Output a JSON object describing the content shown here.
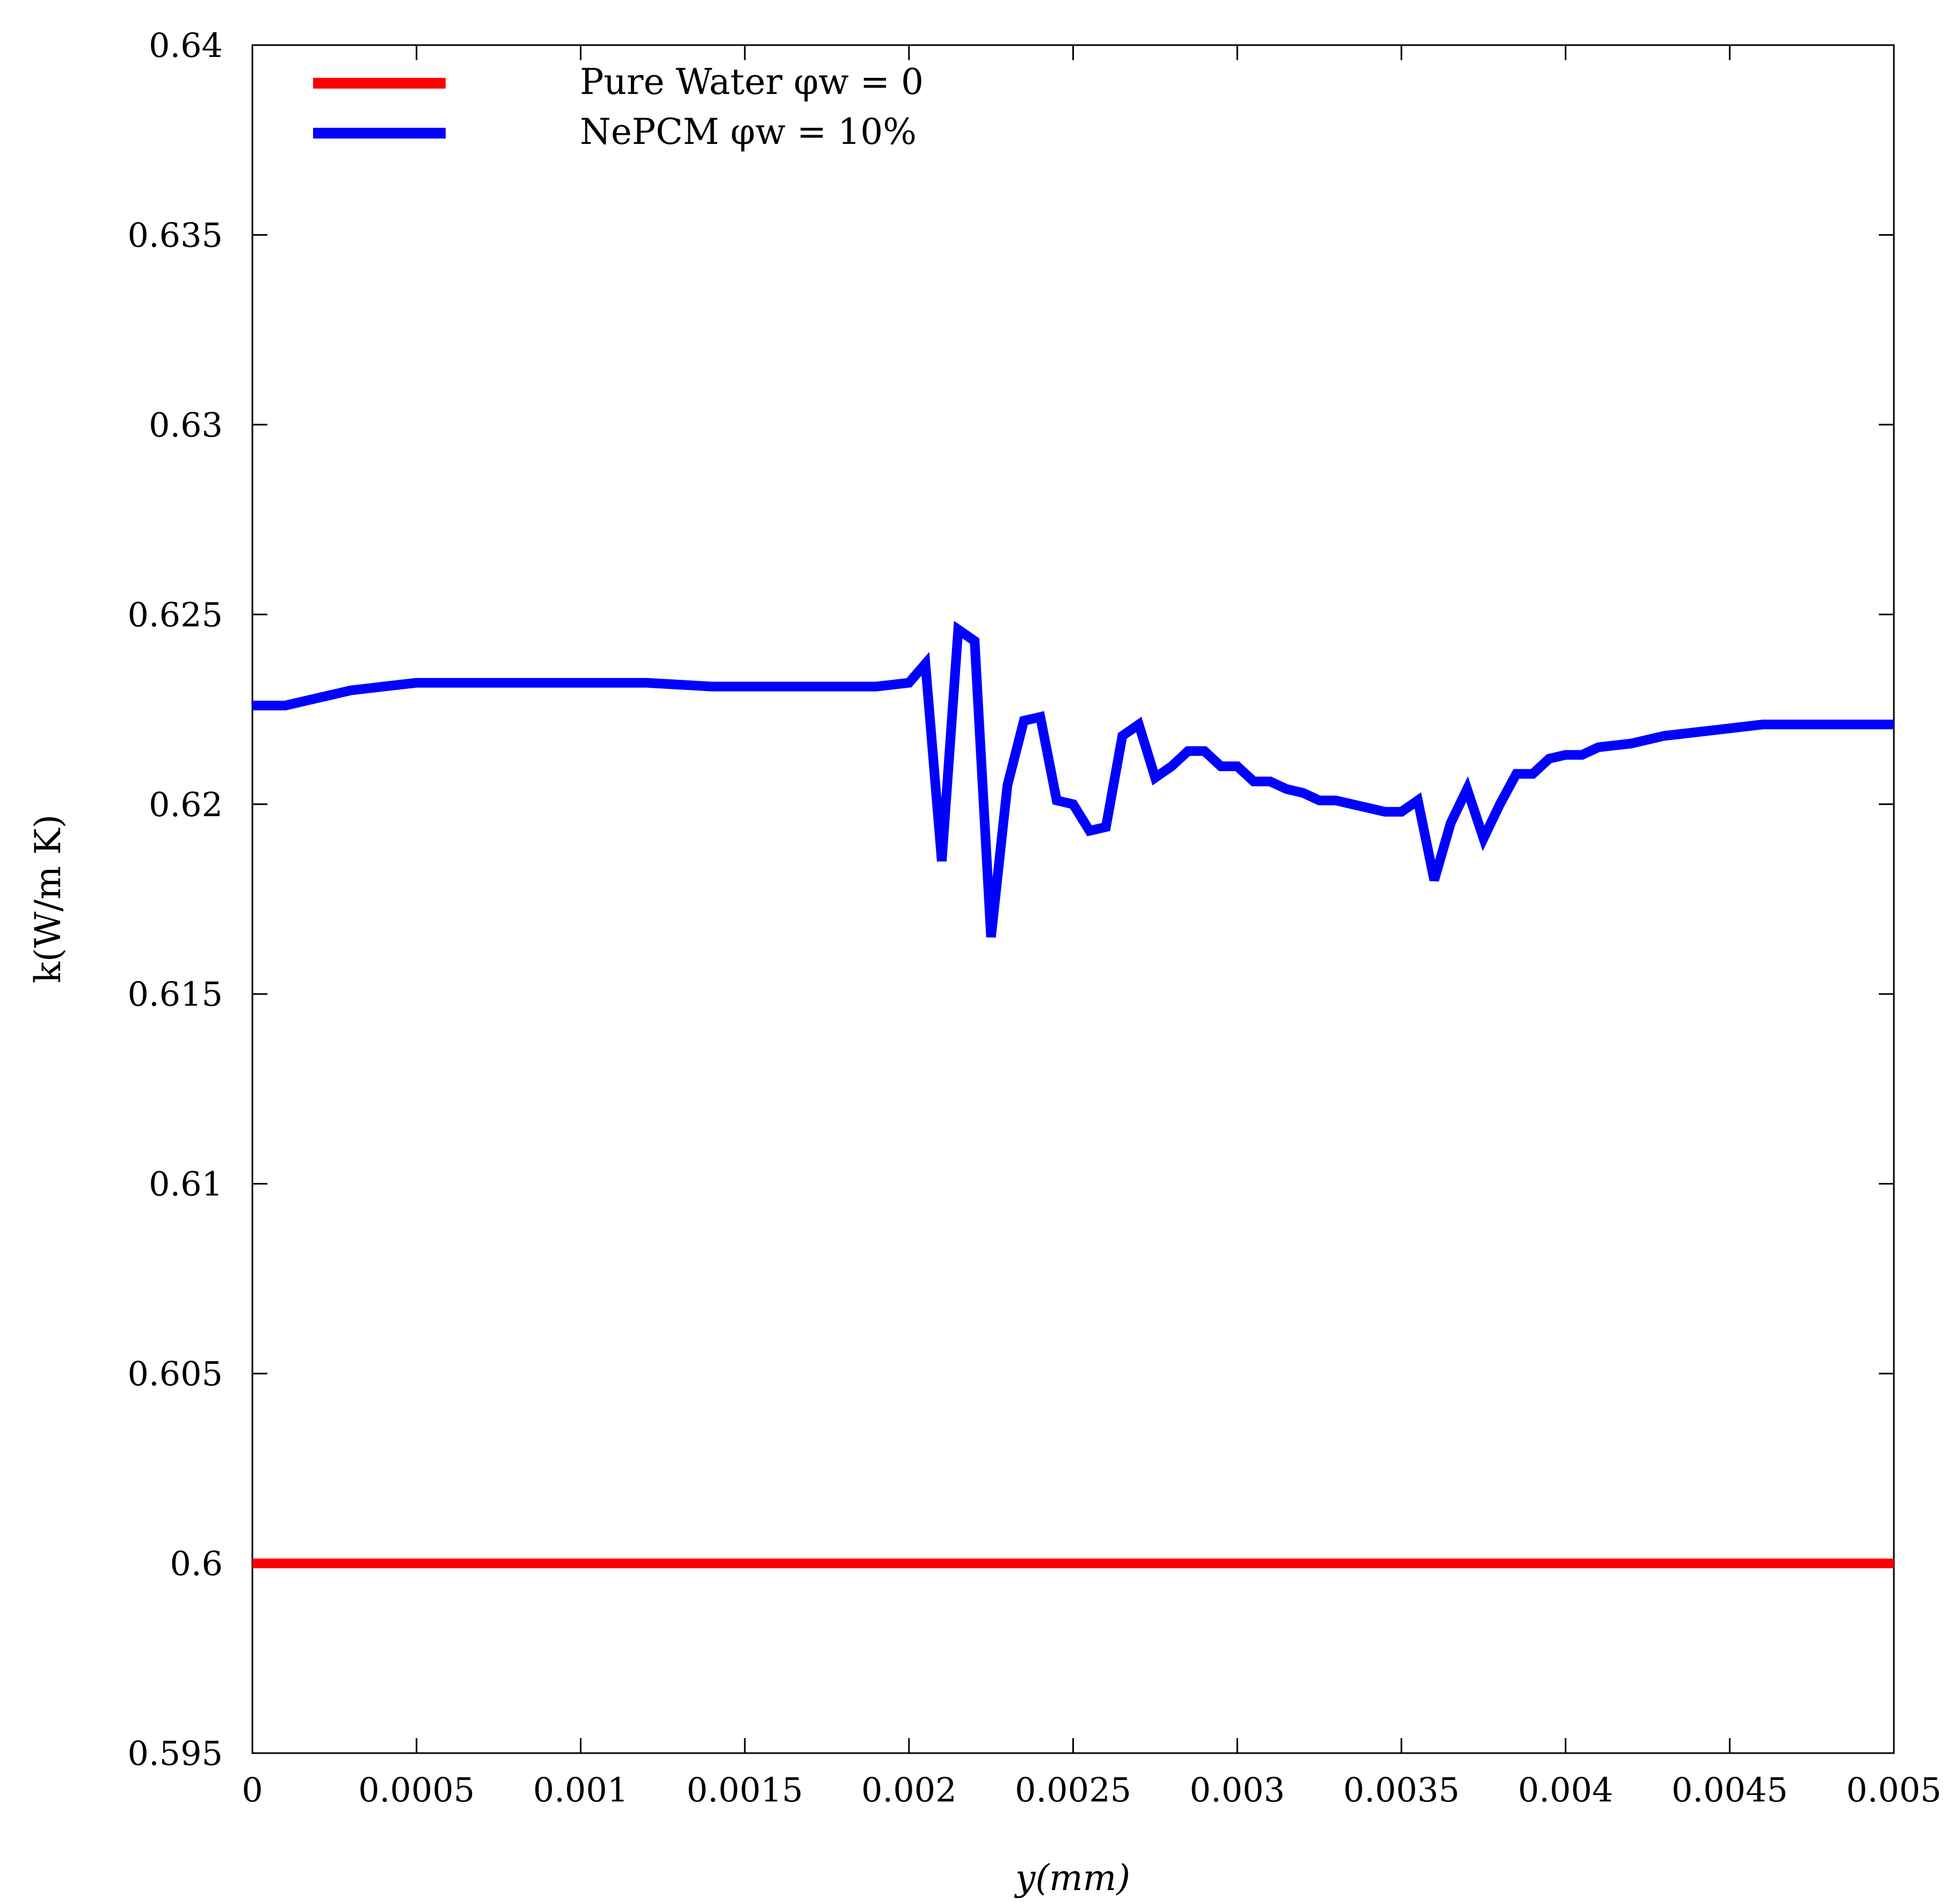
{
  "chart_data": {
    "type": "line",
    "title": "",
    "xlabel": "y(mm)",
    "ylabel": "k(W/m K)",
    "xlim": [
      0,
      0.005
    ],
    "ylim": [
      0.595,
      0.64
    ],
    "x_ticks": [
      "0",
      "0.0005",
      "0.001",
      "0.0015",
      "0.002",
      "0.0025",
      "0.003",
      "0.0035",
      "0.004",
      "0.0045",
      "0.005"
    ],
    "y_ticks": [
      "0.595",
      "0.6",
      "0.605",
      "0.61",
      "0.615",
      "0.62",
      "0.625",
      "0.63",
      "0.635",
      "0.64"
    ],
    "grid": false,
    "legend_position": "top-left",
    "series": [
      {
        "name": "Pure Water φw = 0",
        "color": "#ff0000",
        "x": [
          0,
          0.005
        ],
        "y": [
          0.6,
          0.6
        ]
      },
      {
        "name": "NePCM φw = 10%",
        "color": "#0000ff",
        "x": [
          0,
          0.0001,
          0.0002,
          0.0003,
          0.0004,
          0.0005,
          0.0006,
          0.0008,
          0.001,
          0.0012,
          0.0014,
          0.0016,
          0.0018,
          0.0019,
          0.002,
          0.00205,
          0.0021,
          0.00215,
          0.0022,
          0.00225,
          0.0023,
          0.00235,
          0.0024,
          0.00245,
          0.0025,
          0.00255,
          0.0026,
          0.00265,
          0.0027,
          0.00275,
          0.0028,
          0.00285,
          0.0029,
          0.00295,
          0.003,
          0.00305,
          0.0031,
          0.00315,
          0.0032,
          0.00325,
          0.0033,
          0.00335,
          0.0034,
          0.00345,
          0.0035,
          0.00355,
          0.0036,
          0.00365,
          0.0037,
          0.00375,
          0.0038,
          0.00385,
          0.0039,
          0.00395,
          0.004,
          0.00405,
          0.0041,
          0.0042,
          0.0043,
          0.0044,
          0.0045,
          0.0046,
          0.0047,
          0.0048,
          0.0049,
          0.005
        ],
        "y": [
          0.6226,
          0.6226,
          0.6228,
          0.623,
          0.6231,
          0.6232,
          0.6232,
          0.6232,
          0.6232,
          0.6232,
          0.6231,
          0.6231,
          0.6231,
          0.6231,
          0.6232,
          0.6237,
          0.6185,
          0.6246,
          0.6243,
          0.6165,
          0.6205,
          0.6222,
          0.6223,
          0.6201,
          0.62,
          0.6193,
          0.6194,
          0.6218,
          0.6221,
          0.6207,
          0.621,
          0.6214,
          0.6214,
          0.621,
          0.621,
          0.6206,
          0.6206,
          0.6204,
          0.6203,
          0.6201,
          0.6201,
          0.62,
          0.6199,
          0.6198,
          0.6198,
          0.6201,
          0.618,
          0.6195,
          0.6204,
          0.6191,
          0.62,
          0.6208,
          0.6208,
          0.6212,
          0.6213,
          0.6213,
          0.6215,
          0.6216,
          0.6218,
          0.6219,
          0.622,
          0.6221,
          0.6221,
          0.6221,
          0.6221,
          0.6221
        ]
      }
    ]
  }
}
